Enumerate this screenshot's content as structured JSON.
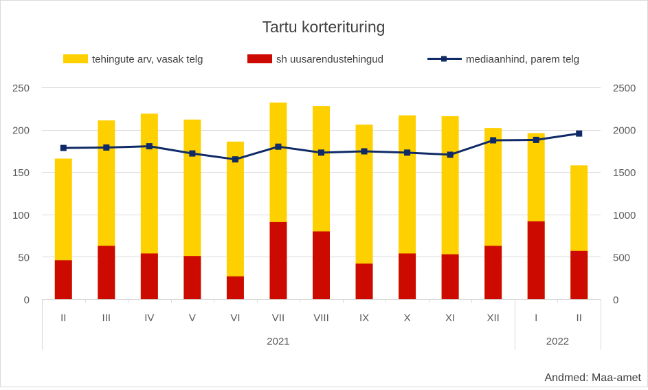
{
  "chart_data": {
    "type": "bar",
    "title": "Tartu korterituring",
    "categories": [
      "II",
      "III",
      "IV",
      "V",
      "VI",
      "VII",
      "VIII",
      "IX",
      "X",
      "XI",
      "XII",
      "I",
      "II"
    ],
    "year_groups": [
      {
        "label": "2021",
        "count": 11
      },
      {
        "label": "2022",
        "count": 2
      }
    ],
    "series": [
      {
        "name": "tehingute arv, vasak telg",
        "kind": "bar",
        "axis": "left",
        "color": "#ffd000",
        "values": [
          166,
          211,
          219,
          212,
          186,
          232,
          228,
          206,
          217,
          216,
          202,
          196,
          158
        ]
      },
      {
        "name": "sh uusarendustehingud",
        "kind": "bar",
        "axis": "left",
        "color": "#cc0a00",
        "values": [
          46,
          63,
          54,
          51,
          27,
          91,
          80,
          42,
          54,
          53,
          63,
          92,
          57
        ]
      },
      {
        "name": "mediaanhind, parem telg",
        "kind": "line",
        "axis": "right",
        "color": "#0f2a66",
        "values": [
          1785,
          1790,
          1805,
          1720,
          1650,
          1800,
          1730,
          1745,
          1730,
          1705,
          1875,
          1880,
          1955
        ]
      }
    ],
    "y_left": {
      "min": 0,
      "max": 250,
      "ticks": [
        0,
        50,
        100,
        150,
        200,
        250
      ]
    },
    "y_right": {
      "min": 0,
      "max": 2500,
      "ticks": [
        0,
        500,
        1000,
        1500,
        2000,
        2500
      ]
    },
    "grid": true,
    "legend": "top",
    "source": "Andmed: Maa-amet"
  }
}
